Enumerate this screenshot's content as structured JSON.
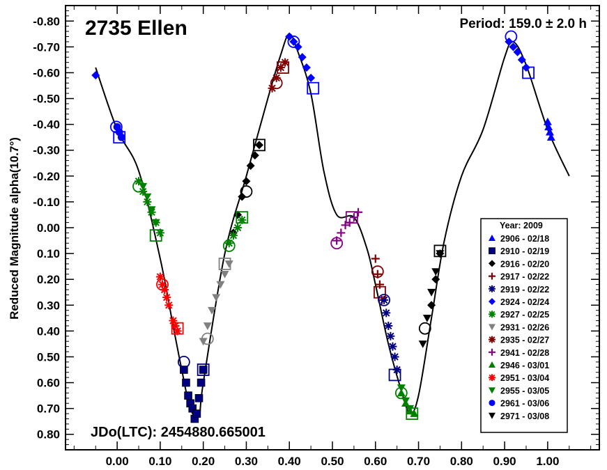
{
  "chart_data": {
    "type": "scatter",
    "title": "2735 Ellen",
    "period_label": "Period: 159.0 ± 2.0 h",
    "epoch_label": "JDo(LTC): 2454880.665001",
    "ylabel": "Reduced Magnitude alpha(10.7°)",
    "xlabel": "",
    "xlim": [
      -0.12,
      1.12
    ],
    "ylim": [
      0.86,
      -0.86
    ],
    "y_inverted": true,
    "xticks": [
      "0.00",
      "0.10",
      "0.20",
      "0.30",
      "0.40",
      "0.50",
      "0.60",
      "0.70",
      "0.80",
      "0.90",
      "1.00"
    ],
    "xtick_values": [
      0.0,
      0.1,
      0.2,
      0.3,
      0.4,
      0.5,
      0.6,
      0.7,
      0.8,
      0.9,
      1.0
    ],
    "yticks": [
      "-0.80",
      "-0.70",
      "-0.60",
      "-0.50",
      "-0.40",
      "-0.30",
      "-0.20",
      "-0.10",
      "0.00",
      "0.10",
      "0.20",
      "0.30",
      "0.40",
      "0.50",
      "0.60",
      "0.70",
      "0.80"
    ],
    "ytick_values": [
      -0.8,
      -0.7,
      -0.6,
      -0.5,
      -0.4,
      -0.3,
      -0.2,
      -0.1,
      0.0,
      0.1,
      0.2,
      0.3,
      0.4,
      0.5,
      0.6,
      0.7,
      0.8
    ],
    "legend": {
      "title": "Year: 2009",
      "placement": "right"
    },
    "fit_curve": {
      "x": [
        -0.05,
        0.0,
        0.05,
        0.1,
        0.13,
        0.15,
        0.17,
        0.19,
        0.2,
        0.25,
        0.3,
        0.35,
        0.38,
        0.4,
        0.42,
        0.45,
        0.48,
        0.51,
        0.55,
        0.58,
        0.6,
        0.63,
        0.66,
        0.68,
        0.7,
        0.73,
        0.76,
        0.8,
        0.85,
        0.9,
        0.92,
        0.95,
        1.0,
        1.05
      ],
      "y": [
        -0.62,
        -0.38,
        -0.22,
        0.12,
        0.38,
        0.55,
        0.7,
        0.73,
        0.6,
        0.1,
        -0.2,
        -0.5,
        -0.67,
        -0.75,
        -0.68,
        -0.52,
        -0.22,
        -0.05,
        -0.04,
        0.08,
        0.22,
        0.45,
        0.63,
        0.72,
        0.65,
        0.35,
        0.05,
        -0.2,
        -0.38,
        -0.66,
        -0.72,
        -0.63,
        -0.38,
        -0.2
      ]
    },
    "series": [
      {
        "name": "2906 - 02/18",
        "color": "#0000ff",
        "marker": "triangle-up",
        "x": [
          1.0,
          1.002,
          1.005,
          1.008
        ],
        "y": [
          -0.41,
          -0.39,
          -0.37,
          -0.35
        ]
      },
      {
        "name": "2910 - 02/19",
        "color": "#000080",
        "marker": "square-filled",
        "x": [
          0.155,
          0.16,
          0.165,
          0.17,
          0.175,
          0.18,
          0.185,
          0.19,
          0.195,
          0.2
        ],
        "y": [
          0.55,
          0.6,
          0.65,
          0.68,
          0.7,
          0.74,
          0.72,
          0.66,
          0.6,
          0.55
        ]
      },
      {
        "name": "2916 - 02/20",
        "color": "#000000",
        "marker": "diamond",
        "x": [
          0.27,
          0.28,
          0.29,
          0.3,
          0.31,
          0.32,
          0.33,
          0.73,
          0.74,
          0.75
        ],
        "y": [
          0.02,
          -0.05,
          -0.12,
          -0.18,
          -0.24,
          -0.28,
          -0.32,
          0.3,
          0.2,
          0.1
        ]
      },
      {
        "name": "2917 - 02/22",
        "color": "#800000",
        "marker": "plus",
        "x": [
          0.6,
          0.605,
          0.61,
          0.615
        ],
        "y": [
          0.12,
          0.18,
          0.22,
          0.28
        ]
      },
      {
        "name": "2919 - 02/22",
        "color": "#000080",
        "marker": "star",
        "x": [
          0.62,
          0.625,
          0.63,
          0.635,
          0.64,
          0.645,
          0.65
        ],
        "y": [
          0.28,
          0.33,
          0.38,
          0.42,
          0.46,
          0.5,
          0.55
        ]
      },
      {
        "name": "2924 - 02/24",
        "color": "#0000ff",
        "marker": "diamond",
        "x": [
          -0.05,
          0.4,
          0.41,
          0.42,
          0.43,
          0.44,
          0.45,
          0.91,
          0.92,
          0.93,
          0.94,
          0.95
        ],
        "y": [
          -0.59,
          -0.74,
          -0.72,
          -0.7,
          -0.66,
          -0.62,
          -0.58,
          -0.72,
          -0.7,
          -0.68,
          -0.65,
          -0.62
        ]
      },
      {
        "name": "2927 - 02/25",
        "color": "#008000",
        "marker": "star",
        "x": [
          0.05,
          0.06,
          0.07,
          0.08,
          0.09,
          0.1,
          0.26,
          0.27,
          0.28,
          0.29
        ],
        "y": [
          -0.18,
          -0.14,
          -0.1,
          -0.06,
          -0.02,
          0.02,
          0.06,
          0.03,
          0.0,
          -0.03
        ]
      },
      {
        "name": "2931 - 02/26",
        "color": "#808080",
        "marker": "triangle-down",
        "x": [
          0.2,
          0.21,
          0.22,
          0.23,
          0.24,
          0.25,
          0.26
        ],
        "y": [
          0.44,
          0.38,
          0.32,
          0.27,
          0.22,
          0.18,
          0.14
        ]
      },
      {
        "name": "2935 - 02/27",
        "color": "#800000",
        "marker": "star",
        "x": [
          0.36,
          0.37,
          0.38,
          0.39
        ],
        "y": [
          -0.54,
          -0.58,
          -0.62,
          -0.64
        ]
      },
      {
        "name": "2941 - 02/28",
        "color": "#800080",
        "marker": "plus",
        "x": [
          0.51,
          0.52,
          0.53,
          0.54,
          0.55,
          0.56
        ],
        "y": [
          0.05,
          0.02,
          -0.01,
          -0.02,
          -0.04,
          -0.06
        ]
      },
      {
        "name": "2946 - 03/01",
        "color": "#008000",
        "marker": "triangle-up",
        "x": [
          0.66,
          0.67,
          0.68,
          0.69
        ],
        "y": [
          0.64,
          0.68,
          0.71,
          0.72
        ]
      },
      {
        "name": "2951 - 03/04",
        "color": "#ff0000",
        "marker": "star",
        "x": [
          0.1,
          0.105,
          0.11,
          0.115,
          0.12,
          0.13,
          0.135,
          0.14
        ],
        "y": [
          0.19,
          0.22,
          0.24,
          0.27,
          0.3,
          0.36,
          0.38,
          0.4
        ]
      },
      {
        "name": "2955 - 03/05",
        "color": "#008000",
        "marker": "triangle-down",
        "x": [
          0.06,
          0.07,
          0.08,
          0.09,
          0.66,
          0.67,
          0.68
        ],
        "y": [
          -0.16,
          -0.12,
          -0.07,
          -0.02,
          0.62,
          0.67,
          0.7
        ]
      },
      {
        "name": "2961 - 03/06",
        "color": "#0000ff",
        "marker": "circle-filled",
        "x": [
          0.0,
          0.005,
          0.01
        ],
        "y": [
          -0.39,
          -0.37,
          -0.35
        ]
      },
      {
        "name": "2971 - 03/08",
        "color": "#000000",
        "marker": "triangle-down",
        "x": [
          0.71,
          0.72,
          0.73,
          0.74,
          0.75
        ],
        "y": [
          0.45,
          0.35,
          0.25,
          0.17,
          0.1
        ]
      }
    ],
    "session_start_markers": [
      {
        "shape": "square",
        "color": "#0000ff",
        "x": 0.005,
        "y": -0.35
      },
      {
        "shape": "circle",
        "color": "#0000ff",
        "x": -0.002,
        "y": -0.39
      },
      {
        "shape": "circle",
        "color": "#008000",
        "x": 0.05,
        "y": -0.16
      },
      {
        "shape": "square",
        "color": "#008000",
        "x": 0.09,
        "y": 0.03
      },
      {
        "shape": "circle",
        "color": "#ff0000",
        "x": 0.105,
        "y": 0.22
      },
      {
        "shape": "square",
        "color": "#ff0000",
        "x": 0.14,
        "y": 0.39
      },
      {
        "shape": "circle",
        "color": "#000080",
        "x": 0.155,
        "y": 0.52
      },
      {
        "shape": "square",
        "color": "#000080",
        "x": 0.2,
        "y": 0.55
      },
      {
        "shape": "circle",
        "color": "#808080",
        "x": 0.21,
        "y": 0.43
      },
      {
        "shape": "square",
        "color": "#808080",
        "x": 0.25,
        "y": 0.14
      },
      {
        "shape": "circle",
        "color": "#008000",
        "x": 0.26,
        "y": 0.07
      },
      {
        "shape": "square",
        "color": "#008000",
        "x": 0.29,
        "y": -0.04
      },
      {
        "shape": "circle",
        "color": "#000000",
        "x": 0.3,
        "y": -0.14
      },
      {
        "shape": "square",
        "color": "#000000",
        "x": 0.33,
        "y": -0.32
      },
      {
        "shape": "circle",
        "color": "#800000",
        "x": 0.37,
        "y": -0.56
      },
      {
        "shape": "square",
        "color": "#800000",
        "x": 0.385,
        "y": -0.62
      },
      {
        "shape": "circle",
        "color": "#0000ff",
        "x": 0.41,
        "y": -0.72
      },
      {
        "shape": "square",
        "color": "#0000ff",
        "x": 0.455,
        "y": -0.54
      },
      {
        "shape": "circle",
        "color": "#800080",
        "x": 0.51,
        "y": 0.06
      },
      {
        "shape": "square",
        "color": "#800080",
        "x": 0.545,
        "y": -0.04
      },
      {
        "shape": "circle",
        "color": "#800000",
        "x": 0.605,
        "y": 0.17
      },
      {
        "shape": "square",
        "color": "#800000",
        "x": 0.61,
        "y": 0.25
      },
      {
        "shape": "circle",
        "color": "#000080",
        "x": 0.62,
        "y": 0.28
      },
      {
        "shape": "square",
        "color": "#000080",
        "x": 0.645,
        "y": 0.57
      },
      {
        "shape": "circle",
        "color": "#008000",
        "x": 0.66,
        "y": 0.64
      },
      {
        "shape": "square",
        "color": "#008000",
        "x": 0.685,
        "y": 0.72
      },
      {
        "shape": "circle",
        "color": "#000000",
        "x": 0.715,
        "y": 0.39
      },
      {
        "shape": "square",
        "color": "#000000",
        "x": 0.75,
        "y": 0.09
      },
      {
        "shape": "circle",
        "color": "#0000ff",
        "x": 0.915,
        "y": -0.74
      },
      {
        "shape": "square",
        "color": "#0000ff",
        "x": 0.955,
        "y": -0.6
      }
    ]
  }
}
